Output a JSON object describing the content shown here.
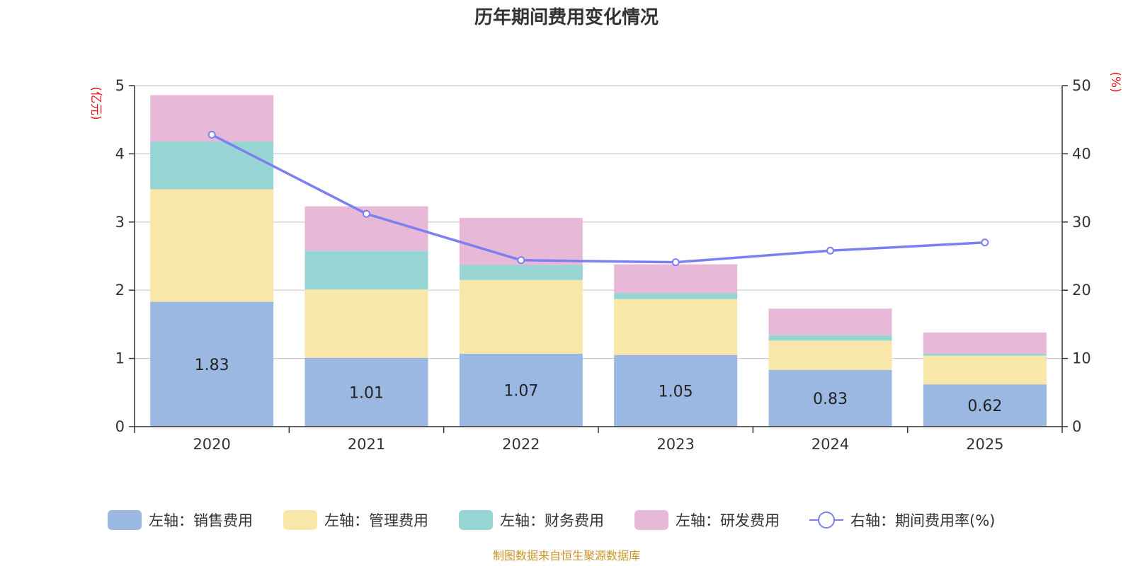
{
  "title": "历年期间费用变化情况",
  "left_axis_unit": "(亿元)",
  "right_axis_unit": "(%)",
  "source": "制图数据来自恒生聚源数据库",
  "chart_data": {
    "type": "bar",
    "stacked": true,
    "categories": [
      "2020",
      "2021",
      "2022",
      "2023",
      "2024",
      "2025"
    ],
    "y_left": {
      "min": 0,
      "max": 5,
      "ticks": [
        0,
        1,
        2,
        3,
        4,
        5
      ]
    },
    "y_right": {
      "min": 0,
      "max": 50,
      "ticks": [
        0,
        10,
        20,
        30,
        40,
        50
      ]
    },
    "series": [
      {
        "name": "左轴：销售费用",
        "kind": "bar",
        "axis": "left",
        "color": "#9bb8e2",
        "values": [
          1.83,
          1.01,
          1.07,
          1.05,
          0.83,
          0.62
        ],
        "labels": [
          "1.83",
          "1.01",
          "1.07",
          "1.05",
          "0.83",
          "0.62"
        ]
      },
      {
        "name": "左轴：管理费用",
        "kind": "bar",
        "axis": "left",
        "color": "#f8e7a8",
        "values": [
          1.65,
          1.0,
          1.08,
          0.82,
          0.43,
          0.42
        ]
      },
      {
        "name": "左轴：财务费用",
        "kind": "bar",
        "axis": "left",
        "color": "#97d5d5",
        "values": [
          0.7,
          0.57,
          0.22,
          0.09,
          0.08,
          0.03
        ]
      },
      {
        "name": "左轴：研发费用",
        "kind": "bar",
        "axis": "left",
        "color": "#e8b8d8",
        "values": [
          0.68,
          0.65,
          0.69,
          0.42,
          0.39,
          0.31
        ]
      },
      {
        "name": "右轴：期间费用率(%)",
        "kind": "line",
        "axis": "right",
        "color": "#7b7ff0",
        "values": [
          42.8,
          31.2,
          24.4,
          24.1,
          25.8,
          27.0
        ]
      }
    ]
  }
}
